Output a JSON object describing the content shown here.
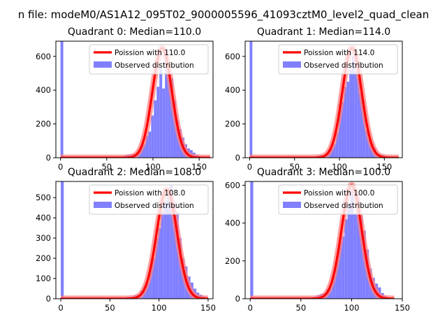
{
  "figure": {
    "suptitle": "n file: modeM0/AS1A12_095T02_9000005596_41093cztM0_level2_quad_clean"
  },
  "colors": {
    "observed": "#8080ff",
    "poisson": "#ff0000",
    "poisson_glow": "#ff8080",
    "axes": "#000000"
  },
  "chart_data": [
    {
      "type": "bar",
      "title": "Quadrant 0: Median=110.0",
      "median": 110.0,
      "xlim": [
        -5,
        165
      ],
      "ylim": [
        0,
        690
      ],
      "xticks": [
        0,
        50,
        100,
        150
      ],
      "yticks": [
        0,
        200,
        400,
        600
      ],
      "legend": {
        "placement": "top-right",
        "line": "Poission with 110.0",
        "bars": "Observed distribution"
      },
      "observed": [
        {
          "x": 0,
          "y": 690
        },
        {
          "x": 68,
          "y": 12
        },
        {
          "x": 71,
          "y": 18
        },
        {
          "x": 74,
          "y": 20
        },
        {
          "x": 77,
          "y": 22
        },
        {
          "x": 80,
          "y": 25
        },
        {
          "x": 83,
          "y": 38
        },
        {
          "x": 86,
          "y": 60
        },
        {
          "x": 89,
          "y": 80
        },
        {
          "x": 92,
          "y": 130
        },
        {
          "x": 95,
          "y": 155
        },
        {
          "x": 98,
          "y": 250
        },
        {
          "x": 101,
          "y": 340
        },
        {
          "x": 104,
          "y": 420
        },
        {
          "x": 107,
          "y": 530
        },
        {
          "x": 110,
          "y": 410
        },
        {
          "x": 113,
          "y": 630
        },
        {
          "x": 116,
          "y": 520
        },
        {
          "x": 119,
          "y": 470
        },
        {
          "x": 122,
          "y": 340
        },
        {
          "x": 125,
          "y": 220
        },
        {
          "x": 128,
          "y": 170
        },
        {
          "x": 131,
          "y": 120
        },
        {
          "x": 134,
          "y": 80
        },
        {
          "x": 137,
          "y": 55
        },
        {
          "x": 140,
          "y": 45
        },
        {
          "x": 143,
          "y": 30
        },
        {
          "x": 146,
          "y": 18
        },
        {
          "x": 149,
          "y": 10
        },
        {
          "x": 152,
          "y": 5
        }
      ],
      "poisson": {
        "lambda": 110.0,
        "peak": 650,
        "x_range": [
          0,
          162
        ]
      }
    },
    {
      "type": "bar",
      "title": "Quadrant 1: Median=114.0",
      "median": 114.0,
      "xlim": [
        -5,
        170
      ],
      "ylim": [
        0,
        690
      ],
      "xticks": [
        0,
        50,
        100,
        150
      ],
      "yticks": [
        0,
        200,
        400,
        600
      ],
      "legend": {
        "placement": "top-right",
        "line": "Poission with 114.0",
        "bars": "Observed distribution"
      },
      "observed": [
        {
          "x": 0,
          "y": 690
        },
        {
          "x": 72,
          "y": 8
        },
        {
          "x": 75,
          "y": 12
        },
        {
          "x": 78,
          "y": 15
        },
        {
          "x": 81,
          "y": 15
        },
        {
          "x": 84,
          "y": 20
        },
        {
          "x": 87,
          "y": 50
        },
        {
          "x": 90,
          "y": 60
        },
        {
          "x": 93,
          "y": 80
        },
        {
          "x": 96,
          "y": 150
        },
        {
          "x": 99,
          "y": 320
        },
        {
          "x": 102,
          "y": 330
        },
        {
          "x": 105,
          "y": 420
        },
        {
          "x": 108,
          "y": 450
        },
        {
          "x": 111,
          "y": 520
        },
        {
          "x": 114,
          "y": 600
        },
        {
          "x": 117,
          "y": 510
        },
        {
          "x": 120,
          "y": 470
        },
        {
          "x": 123,
          "y": 380
        },
        {
          "x": 126,
          "y": 300
        },
        {
          "x": 129,
          "y": 160
        },
        {
          "x": 132,
          "y": 110
        },
        {
          "x": 135,
          "y": 80
        },
        {
          "x": 138,
          "y": 60
        },
        {
          "x": 141,
          "y": 25
        },
        {
          "x": 144,
          "y": 20
        },
        {
          "x": 147,
          "y": 15
        },
        {
          "x": 150,
          "y": 10
        },
        {
          "x": 153,
          "y": 5
        }
      ],
      "poisson": {
        "lambda": 114.0,
        "peak": 650,
        "x_range": [
          0,
          166
        ]
      }
    },
    {
      "type": "bar",
      "title": "Quadrant 2: Median=108.0",
      "median": 108.0,
      "xlim": [
        -5,
        155
      ],
      "ylim": [
        0,
        580
      ],
      "xticks": [
        0,
        50,
        100,
        150
      ],
      "yticks": [
        0,
        100,
        200,
        300,
        400,
        500
      ],
      "legend": {
        "placement": "top-right",
        "line": "Poission with 108.0",
        "bars": "Observed distribution"
      },
      "observed": [
        {
          "x": 0,
          "y": 580
        },
        {
          "x": 66,
          "y": 8
        },
        {
          "x": 69,
          "y": 10
        },
        {
          "x": 72,
          "y": 12
        },
        {
          "x": 75,
          "y": 18
        },
        {
          "x": 78,
          "y": 20
        },
        {
          "x": 81,
          "y": 40
        },
        {
          "x": 84,
          "y": 60
        },
        {
          "x": 87,
          "y": 80
        },
        {
          "x": 90,
          "y": 160
        },
        {
          "x": 93,
          "y": 200
        },
        {
          "x": 96,
          "y": 300
        },
        {
          "x": 99,
          "y": 350
        },
        {
          "x": 102,
          "y": 430
        },
        {
          "x": 105,
          "y": 480
        },
        {
          "x": 108,
          "y": 510
        },
        {
          "x": 111,
          "y": 560
        },
        {
          "x": 114,
          "y": 480
        },
        {
          "x": 117,
          "y": 430
        },
        {
          "x": 120,
          "y": 300
        },
        {
          "x": 123,
          "y": 200
        },
        {
          "x": 126,
          "y": 160
        },
        {
          "x": 129,
          "y": 110
        },
        {
          "x": 132,
          "y": 80
        },
        {
          "x": 135,
          "y": 50
        },
        {
          "x": 138,
          "y": 30
        },
        {
          "x": 141,
          "y": 20
        },
        {
          "x": 144,
          "y": 12
        },
        {
          "x": 147,
          "y": 5
        }
      ],
      "poisson": {
        "lambda": 108.0,
        "peak": 540,
        "x_range": [
          0,
          150
        ]
      }
    },
    {
      "type": "bar",
      "title": "Quadrant 3: Median=100.0",
      "median": 100.0,
      "xlim": [
        -5,
        150
      ],
      "ylim": [
        0,
        620
      ],
      "xticks": [
        0,
        50,
        100,
        150
      ],
      "yticks": [
        0,
        200,
        400,
        600
      ],
      "legend": {
        "placement": "top-right",
        "line": "Poission with 100.0",
        "bars": "Observed distribution"
      },
      "observed": [
        {
          "x": 0,
          "y": 620
        },
        {
          "x": 60,
          "y": 8
        },
        {
          "x": 63,
          "y": 12
        },
        {
          "x": 66,
          "y": 20
        },
        {
          "x": 69,
          "y": 25
        },
        {
          "x": 72,
          "y": 30
        },
        {
          "x": 75,
          "y": 50
        },
        {
          "x": 78,
          "y": 70
        },
        {
          "x": 81,
          "y": 120
        },
        {
          "x": 84,
          "y": 200
        },
        {
          "x": 87,
          "y": 300
        },
        {
          "x": 90,
          "y": 330
        },
        {
          "x": 93,
          "y": 420
        },
        {
          "x": 96,
          "y": 500
        },
        {
          "x": 99,
          "y": 580
        },
        {
          "x": 102,
          "y": 450
        },
        {
          "x": 105,
          "y": 540
        },
        {
          "x": 108,
          "y": 440
        },
        {
          "x": 111,
          "y": 360
        },
        {
          "x": 114,
          "y": 260
        },
        {
          "x": 117,
          "y": 160
        },
        {
          "x": 120,
          "y": 110
        },
        {
          "x": 123,
          "y": 80
        },
        {
          "x": 126,
          "y": 60
        },
        {
          "x": 129,
          "y": 30
        },
        {
          "x": 132,
          "y": 15
        },
        {
          "x": 135,
          "y": 8
        }
      ],
      "poisson": {
        "lambda": 100.0,
        "peak": 600,
        "x_range": [
          0,
          142
        ]
      }
    }
  ]
}
